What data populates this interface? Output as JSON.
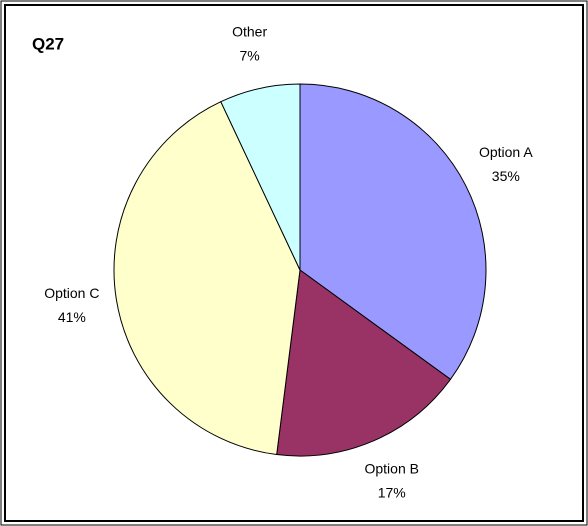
{
  "chart_data": {
    "type": "pie",
    "title": "Q27",
    "categories": [
      "Option A",
      "Option B",
      "Option C",
      "Other"
    ],
    "values": [
      35,
      17,
      41,
      7
    ],
    "value_labels": [
      "35%",
      "17%",
      "41%",
      "7%"
    ],
    "colors": [
      "#9999ff",
      "#993366",
      "#ffffcc",
      "#ccffff"
    ]
  }
}
